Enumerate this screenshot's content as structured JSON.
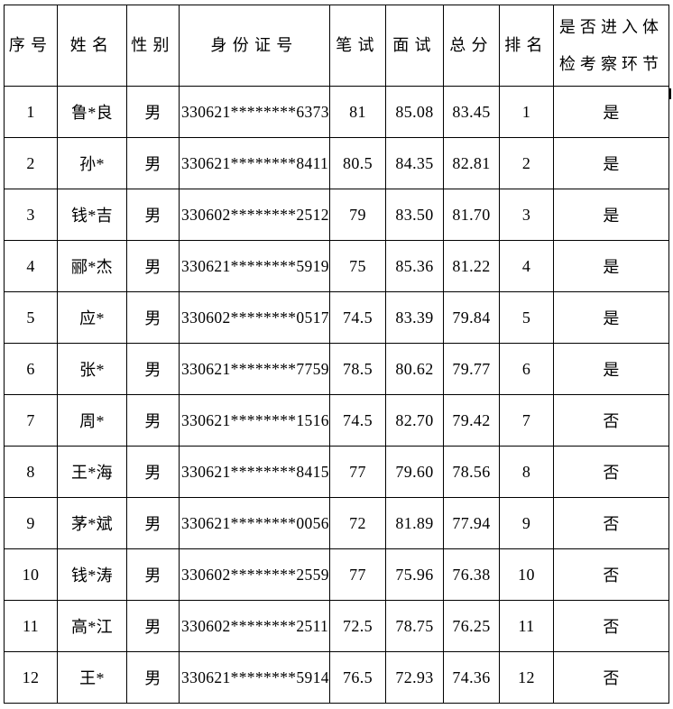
{
  "colors": {
    "border": "#000000",
    "text": "#000000",
    "background": "#ffffff"
  },
  "table": {
    "headers": [
      "序号",
      "姓名",
      "性别",
      "身份证号",
      "笔试",
      "面试",
      "总分",
      "排名",
      "是否进入体\n检考察环节"
    ],
    "column_keys": [
      "seq",
      "name",
      "gender",
      "id_number",
      "written_score",
      "interview_score",
      "total_score",
      "rank",
      "enter_physical_check"
    ],
    "rows": [
      [
        "1",
        "鲁*良",
        "男",
        "330621********6373",
        "81",
        "85.08",
        "83.45",
        "1",
        "是"
      ],
      [
        "2",
        "孙*",
        "男",
        "330621********8411",
        "80.5",
        "84.35",
        "82.81",
        "2",
        "是"
      ],
      [
        "3",
        "钱*吉",
        "男",
        "330602********2512",
        "79",
        "83.50",
        "81.70",
        "3",
        "是"
      ],
      [
        "4",
        "郦*杰",
        "男",
        "330621********5919",
        "75",
        "85.36",
        "81.22",
        "4",
        "是"
      ],
      [
        "5",
        "应*",
        "男",
        "330602********0517",
        "74.5",
        "83.39",
        "79.84",
        "5",
        "是"
      ],
      [
        "6",
        "张*",
        "男",
        "330621********7759",
        "78.5",
        "80.62",
        "79.77",
        "6",
        "是"
      ],
      [
        "7",
        "周*",
        "男",
        "330621********1516",
        "74.5",
        "82.70",
        "79.42",
        "7",
        "否"
      ],
      [
        "8",
        "王*海",
        "男",
        "330621********8415",
        "77",
        "79.60",
        "78.56",
        "8",
        "否"
      ],
      [
        "9",
        "茅*斌",
        "男",
        "330621********0056",
        "72",
        "81.89",
        "77.94",
        "9",
        "否"
      ],
      [
        "10",
        "钱*涛",
        "男",
        "330602********2559",
        "77",
        "75.96",
        "76.38",
        "10",
        "否"
      ],
      [
        "11",
        "高*江",
        "男",
        "330602********2511",
        "72.5",
        "78.75",
        "76.25",
        "11",
        "否"
      ],
      [
        "12",
        "王*",
        "男",
        "330621********5914",
        "76.5",
        "72.93",
        "74.36",
        "12",
        "否"
      ]
    ]
  }
}
